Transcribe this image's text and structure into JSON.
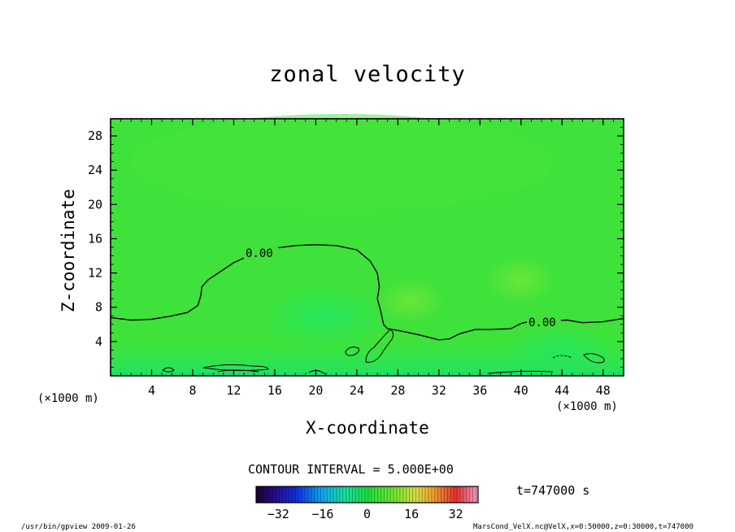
{
  "chart_data": {
    "type": "heatmap",
    "title": "zonal velocity",
    "xlabel": "X-coordinate",
    "ylabel": "Z-coordinate",
    "x_unit": "(×1000 m)",
    "x_ticks": [
      4,
      8,
      12,
      16,
      20,
      24,
      28,
      32,
      36,
      40,
      44,
      48
    ],
    "y_ticks": [
      4,
      8,
      12,
      16,
      20,
      24,
      28
    ],
    "xlim": [
      0,
      50
    ],
    "ylim": [
      0,
      30
    ],
    "contour_interval_label": "CONTOUR INTERVAL = 5.000E+00",
    "contour_labels": [
      "0.00",
      "0.00"
    ],
    "zero_contour": [
      [
        0,
        6.8
      ],
      [
        2,
        6.5
      ],
      [
        4,
        6.6
      ],
      [
        6,
        7.0
      ],
      [
        7.5,
        7.4
      ],
      [
        8.5,
        8.2
      ],
      [
        8.8,
        9.4
      ],
      [
        8.9,
        10.4
      ],
      [
        9.5,
        11.2
      ],
      [
        10.5,
        12.0
      ],
      [
        12,
        13.2
      ],
      [
        14,
        14.3
      ],
      [
        16,
        14.9
      ],
      [
        18,
        15.2
      ],
      [
        20,
        15.3
      ],
      [
        22,
        15.2
      ],
      [
        24,
        14.7
      ],
      [
        25.3,
        13.4
      ],
      [
        26,
        12.0
      ],
      [
        26.2,
        10.4
      ],
      [
        26,
        9.0
      ],
      [
        26.3,
        7.7
      ],
      [
        26.6,
        6.0
      ],
      [
        27,
        5.5
      ],
      [
        28,
        5.3
      ],
      [
        30,
        4.8
      ],
      [
        32,
        4.2
      ],
      [
        33,
        4.3
      ],
      [
        34,
        4.9
      ],
      [
        35.5,
        5.4
      ],
      [
        37,
        5.4
      ],
      [
        39,
        5.5
      ],
      [
        40,
        6.1
      ],
      [
        41,
        6.4
      ],
      [
        43,
        6.4
      ],
      [
        44.5,
        6.5
      ],
      [
        46,
        6.2
      ],
      [
        48,
        6.3
      ],
      [
        50,
        6.7
      ]
    ],
    "colorbar": {
      "ticks": [
        -32,
        -16,
        0,
        16,
        32
      ],
      "range": [
        -40,
        40
      ]
    },
    "time_label": "t=747000 s"
  },
  "footer": {
    "left": "/usr/bin/gpview  2009-01-26",
    "right": "MarsCond_VelX.nc@VelX,x=0:50000,z=0:30000,t=747000"
  }
}
